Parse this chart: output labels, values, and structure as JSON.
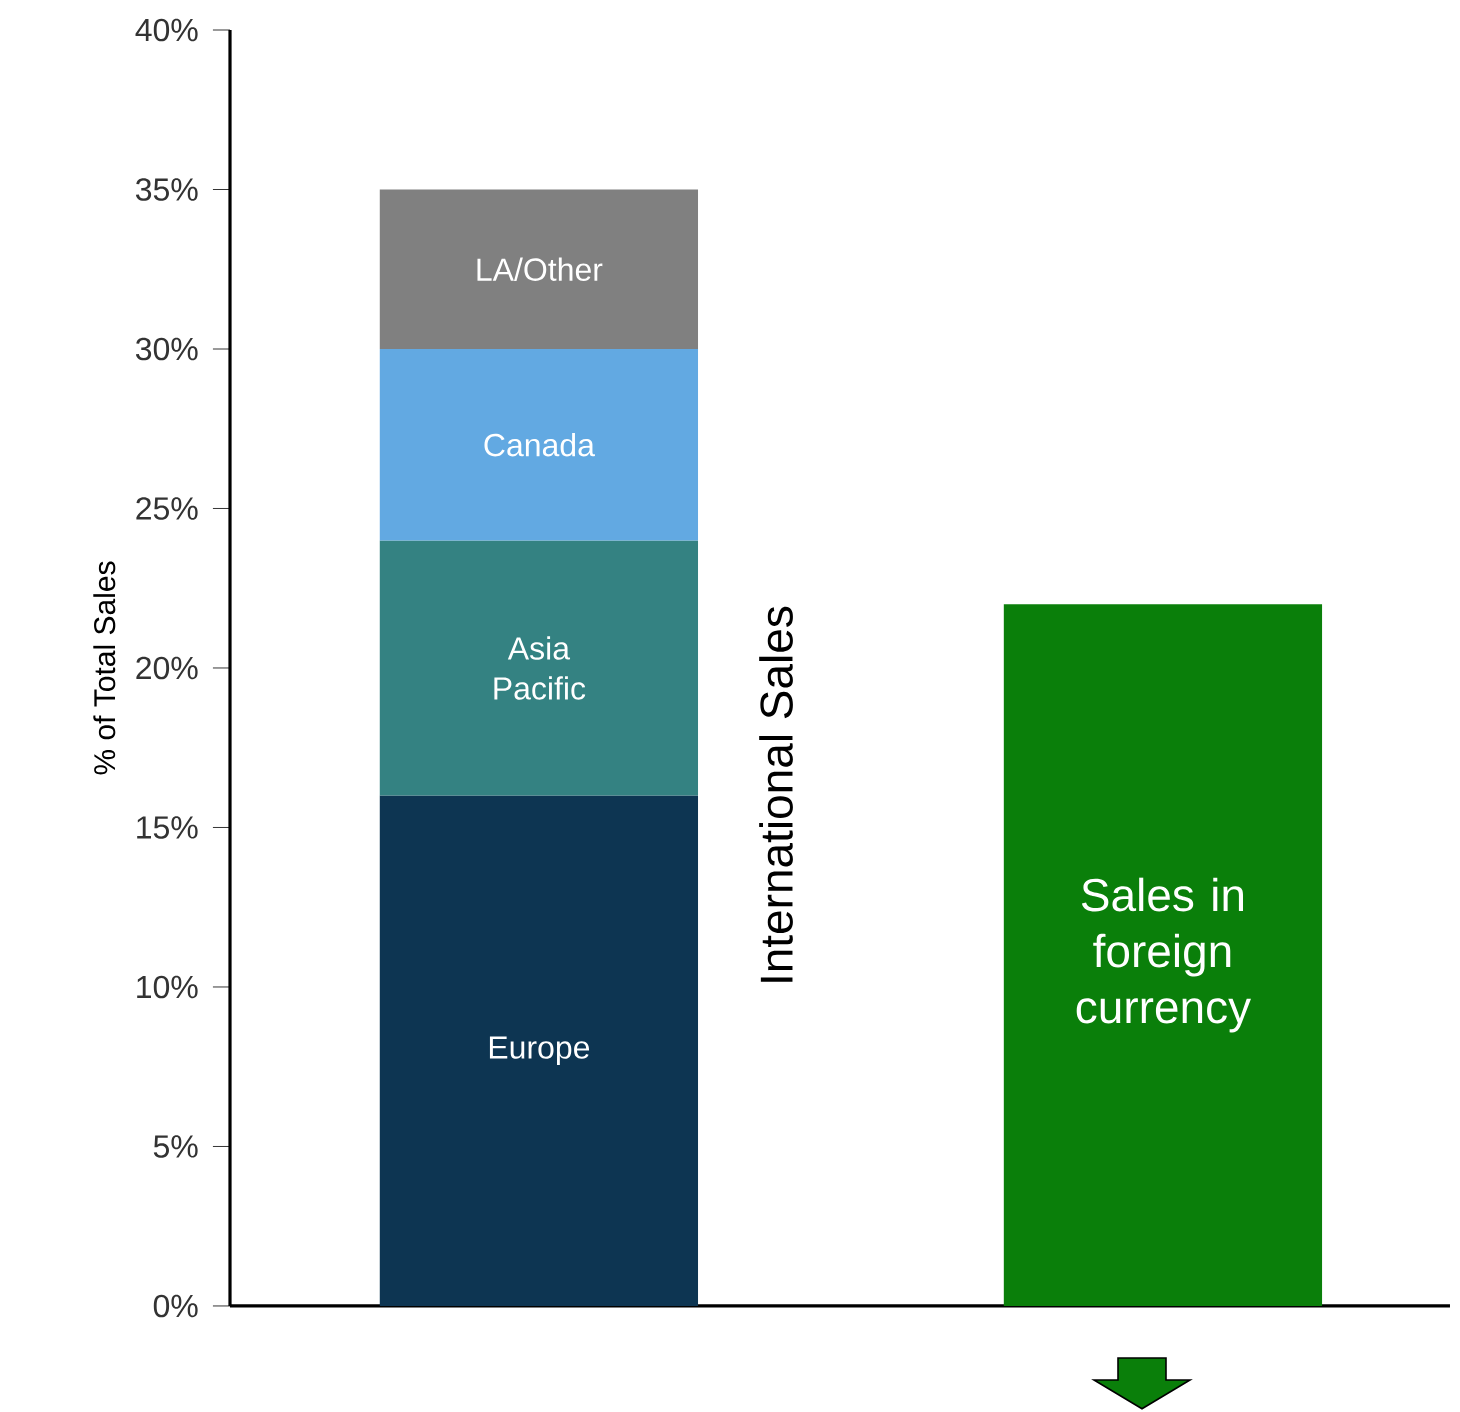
{
  "chart_data": {
    "type": "bar",
    "stacked": true,
    "ylabel": "% of Total Sales",
    "categories": [
      null,
      null
    ],
    "series": [
      {
        "name": "Europe",
        "color": "#0d3552",
        "values": [
          16,
          null
        ]
      },
      {
        "name": "Asia Pacific",
        "color": "#348282",
        "values": [
          8,
          null
        ]
      },
      {
        "name": "Canada",
        "color": "#62a9e2",
        "values": [
          6,
          null
        ]
      },
      {
        "name": "LA/Other",
        "color": "#808080",
        "values": [
          5,
          null
        ]
      },
      {
        "name": "Sales in foreign currency",
        "color": "#0a7f0a",
        "values": [
          null,
          22
        ]
      }
    ],
    "annotations": [
      "International Sales"
    ],
    "ylim": [
      0,
      40
    ],
    "yticks": [
      {
        "value": 0,
        "label": "0%"
      },
      {
        "value": 5,
        "label": "5%"
      },
      {
        "value": 10,
        "label": "10%"
      },
      {
        "value": 15,
        "label": "15%"
      },
      {
        "value": 20,
        "label": "20%"
      },
      {
        "value": 25,
        "label": "25%"
      },
      {
        "value": 30,
        "label": "30%"
      },
      {
        "value": 35,
        "label": "35%"
      },
      {
        "value": 40,
        "label": "40%"
      }
    ]
  }
}
